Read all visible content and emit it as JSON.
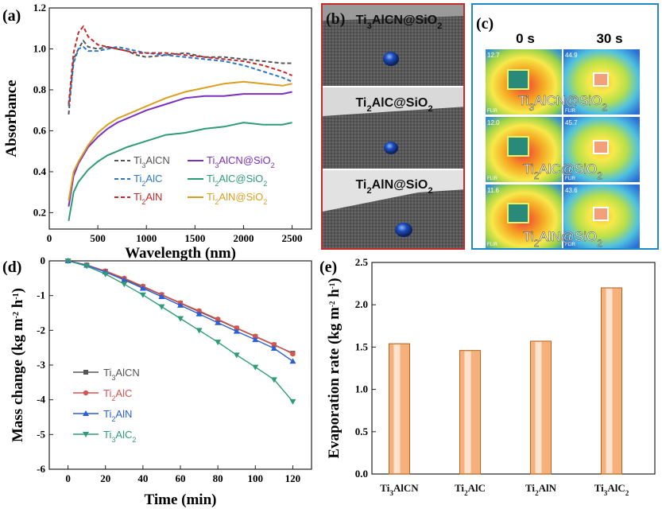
{
  "panel_a": {
    "label": "(a)",
    "chart_data": {
      "type": "line",
      "xlabel": "Wavelength (nm)",
      "ylabel": "Absorbance",
      "xlim": [
        0,
        2700
      ],
      "ylim": [
        0.12,
        1.2
      ],
      "xticks": [
        0,
        500,
        1000,
        1500,
        2000,
        2500
      ],
      "yticks": [
        0.2,
        0.4,
        0.6,
        0.8,
        1.0,
        1.2
      ],
      "legend_position": "bottom-right",
      "series": [
        {
          "name": "Ti3AlCN",
          "color": "#555555",
          "dash": true,
          "x": [
            200,
            250,
            300,
            350,
            400,
            500,
            600,
            700,
            800,
            900,
            1000,
            1200,
            1400,
            1600,
            1800,
            2000,
            2200,
            2400,
            2500
          ],
          "y": [
            0.68,
            0.95,
            1.0,
            1.04,
            1.01,
            1.0,
            1.01,
            1.0,
            0.99,
            0.97,
            0.96,
            0.97,
            0.98,
            0.96,
            0.96,
            0.95,
            0.94,
            0.93,
            0.93
          ]
        },
        {
          "name": "Ti2AlC",
          "color": "#2b78c5",
          "dash": true,
          "x": [
            200,
            250,
            300,
            350,
            400,
            500,
            600,
            700,
            800,
            900,
            1000,
            1200,
            1400,
            1600,
            1800,
            2000,
            2200,
            2400,
            2500
          ],
          "y": [
            0.72,
            0.93,
            1.0,
            1.01,
            0.99,
            0.99,
            1.0,
            1.01,
            1.0,
            0.99,
            0.98,
            0.97,
            0.96,
            0.95,
            0.94,
            0.92,
            0.89,
            0.86,
            0.84
          ]
        },
        {
          "name": "Ti2AlN",
          "color": "#c62828",
          "dash": true,
          "x": [
            200,
            250,
            300,
            350,
            400,
            500,
            600,
            700,
            800,
            900,
            1000,
            1200,
            1400,
            1600,
            1800,
            2000,
            2200,
            2400,
            2500
          ],
          "y": [
            0.73,
            0.98,
            1.08,
            1.11,
            1.06,
            1.02,
            1.01,
            1.0,
            0.99,
            0.98,
            0.98,
            0.98,
            0.97,
            0.96,
            0.95,
            0.94,
            0.92,
            0.89,
            0.87
          ]
        },
        {
          "name": "Ti3AlCN@SiO2",
          "color": "#7b2fbe",
          "dash": false,
          "x": [
            200,
            250,
            300,
            400,
            500,
            600,
            700,
            800,
            1000,
            1200,
            1400,
            1600,
            1800,
            2000,
            2200,
            2400,
            2500
          ],
          "y": [
            0.23,
            0.38,
            0.44,
            0.52,
            0.57,
            0.61,
            0.64,
            0.66,
            0.7,
            0.73,
            0.76,
            0.77,
            0.77,
            0.78,
            0.78,
            0.78,
            0.79
          ]
        },
        {
          "name": "Ti2AlC@SiO2",
          "color": "#2e9c79",
          "dash": false,
          "x": [
            200,
            250,
            300,
            400,
            500,
            600,
            700,
            800,
            1000,
            1200,
            1400,
            1600,
            1800,
            2000,
            2200,
            2400,
            2500
          ],
          "y": [
            0.16,
            0.3,
            0.35,
            0.41,
            0.45,
            0.48,
            0.5,
            0.52,
            0.55,
            0.58,
            0.59,
            0.61,
            0.62,
            0.64,
            0.63,
            0.63,
            0.64
          ]
        },
        {
          "name": "Ti2AlN@SiO2",
          "color": "#d9a021",
          "dash": false,
          "x": [
            200,
            250,
            300,
            400,
            500,
            600,
            700,
            800,
            1000,
            1200,
            1400,
            1600,
            1800,
            2000,
            2200,
            2400,
            2500
          ],
          "y": [
            0.26,
            0.4,
            0.45,
            0.53,
            0.59,
            0.63,
            0.66,
            0.68,
            0.72,
            0.76,
            0.79,
            0.81,
            0.83,
            0.84,
            0.83,
            0.82,
            0.83
          ]
        }
      ]
    }
  },
  "panel_b": {
    "label": "(b)",
    "photos": [
      {
        "caption": "Ti3AlCN@SiO2"
      },
      {
        "caption": "Ti2AlC@SiO2"
      },
      {
        "caption": "Ti2AlN@SiO2"
      }
    ],
    "surface_color": "#5a5a5a",
    "droplet_color": "#1d4bb8"
  },
  "panel_c": {
    "label": "(c)",
    "time_labels": [
      "0 s",
      "30 s"
    ],
    "rows": [
      {
        "caption": "Ti3AlCN@SiO2",
        "readings": [
          "12.7",
          "44.9"
        ]
      },
      {
        "caption": "Ti2AlC@SiO2",
        "readings": [
          "12.0",
          "45.7"
        ]
      },
      {
        "caption": "Ti2AlN@SiO2",
        "readings": [
          "11.6",
          "43.6"
        ]
      }
    ],
    "brand": "FLIR"
  },
  "panel_d": {
    "label": "(d)",
    "chart_data": {
      "type": "line",
      "xlabel": "Time (min)",
      "ylabel": "Mass change (kg m-2 h-1)",
      "xlim": [
        -10,
        130
      ],
      "ylim": [
        -6,
        0
      ],
      "xticks": [
        0,
        20,
        40,
        60,
        80,
        100,
        120
      ],
      "yticks": [
        0,
        -1,
        -2,
        -3,
        -4,
        -5,
        -6
      ],
      "legend_position": "bottom-left",
      "x": [
        0,
        10,
        20,
        30,
        40,
        50,
        60,
        70,
        80,
        90,
        100,
        110,
        120
      ],
      "series": [
        {
          "name": "Ti3AlCN",
          "color": "#555555",
          "marker": "square",
          "values": [
            0,
            -0.12,
            -0.3,
            -0.52,
            -0.75,
            -0.98,
            -1.22,
            -1.46,
            -1.7,
            -1.94,
            -2.18,
            -2.42,
            -2.66
          ]
        },
        {
          "name": "Ti2AlC",
          "color": "#d9534f",
          "marker": "circle",
          "values": [
            0,
            -0.12,
            -0.29,
            -0.5,
            -0.73,
            -0.97,
            -1.21,
            -1.44,
            -1.68,
            -1.93,
            -2.17,
            -2.41,
            -2.68
          ]
        },
        {
          "name": "Ti2AlN",
          "color": "#2b5fd9",
          "marker": "triangle-up",
          "values": [
            0,
            -0.13,
            -0.32,
            -0.55,
            -0.79,
            -1.03,
            -1.28,
            -1.53,
            -1.78,
            -2.03,
            -2.27,
            -2.52,
            -2.89
          ]
        },
        {
          "name": "Ti3AlC2",
          "color": "#2e9c79",
          "marker": "triangle-down",
          "values": [
            0,
            -0.15,
            -0.38,
            -0.67,
            -0.98,
            -1.32,
            -1.66,
            -2.0,
            -2.34,
            -2.71,
            -3.06,
            -3.42,
            -4.05
          ]
        }
      ]
    }
  },
  "panel_e": {
    "label": "(e)",
    "chart_data": {
      "type": "bar",
      "ylabel": "Evaporation rate (kg m-2 h-1)",
      "categories": [
        "Ti3AlCN",
        "Ti2AlC",
        "Ti2AlN",
        "Ti3AlC2"
      ],
      "values": [
        1.54,
        1.46,
        1.57,
        2.2
      ],
      "ylim": [
        0,
        2.5
      ],
      "yticks": [
        0.0,
        0.5,
        1.0,
        1.5,
        2.0,
        2.5
      ],
      "bar_color": "#f5b07c"
    }
  }
}
